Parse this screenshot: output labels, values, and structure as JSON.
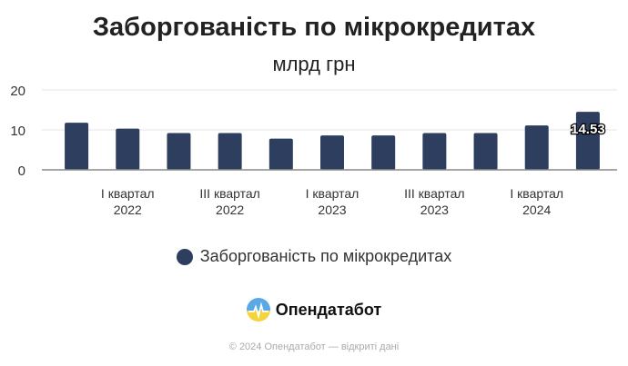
{
  "chart_data": {
    "type": "bar",
    "title": "Заборгованість по мікрокредитах",
    "subtitle": "млрд грн",
    "categories": [
      "",
      "I квартал 2022",
      "",
      "III квартал 2022",
      "",
      "I квартал 2023",
      "",
      "III квартал 2023",
      "",
      "I квартал 2024",
      ""
    ],
    "series": [
      {
        "name": "Заборгованість по мікрокредитах",
        "values": [
          11.8,
          10.3,
          9.2,
          9.2,
          7.8,
          8.6,
          8.6,
          9.2,
          9.2,
          11.1,
          14.53
        ],
        "color": "#2d3e5e"
      }
    ],
    "data_labels": [
      {
        "index": 10,
        "text": "14.53"
      }
    ],
    "yticks": [
      0,
      10,
      20
    ],
    "ylim": [
      0,
      20
    ],
    "grid": true,
    "legend": "bottom"
  },
  "brand": {
    "name": "Опендатабот"
  },
  "footer": "© 2024 Опендатабот — відкриті дані"
}
